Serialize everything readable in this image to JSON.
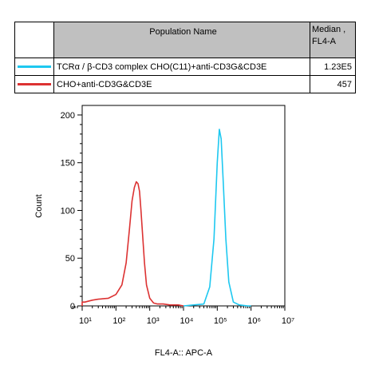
{
  "legend": {
    "header_population": "Population Name",
    "header_median": "Median ,",
    "header_median_param": "FL4-A",
    "rows": [
      {
        "name": "TCRα / β-CD3 complex CHO(C11)+anti-CD3G&CD3E",
        "median": "1.23E5",
        "color": "#1ec8f0"
      },
      {
        "name": "CHO+anti-CD3G&CD3E",
        "median": "457",
        "color": "#dc3232"
      }
    ]
  },
  "chart_data": {
    "type": "line",
    "xlabel": "FL4-A:: APC-A",
    "ylabel": "Count",
    "x_scale": "log",
    "xlim": [
      10000,
      10000000
    ],
    "ylim": [
      0,
      210
    ],
    "x_tick_labels": [
      "10¹",
      "10²",
      "10³",
      "10⁴",
      "10⁵",
      "10⁶",
      "10⁷"
    ],
    "y_ticks": [
      0,
      50,
      100,
      150,
      200
    ],
    "series": [
      {
        "name": "CHO+anti-CD3G&CD3E",
        "color": "#dc3232",
        "x": [
          1,
          3,
          5,
          8,
          12,
          20,
          30,
          60,
          100,
          150,
          200,
          250,
          300,
          350,
          400,
          450,
          500,
          550,
          600,
          700,
          800,
          1000,
          1300,
          1700,
          2500,
          4000,
          7000,
          10000
        ],
        "y": [
          0,
          1,
          3,
          4,
          4,
          6,
          7,
          8,
          12,
          22,
          45,
          80,
          110,
          124,
          130,
          128,
          120,
          100,
          80,
          45,
          22,
          8,
          3,
          2,
          2,
          1,
          1,
          0
        ]
      },
      {
        "name": "TCRα / β-CD3 complex CHO(C11)+anti-CD3G&CD3E",
        "color": "#1ec8f0",
        "x": [
          10000,
          20000,
          40000,
          60000,
          80000,
          100000,
          115000,
          130000,
          150000,
          180000,
          220000,
          300000,
          450000,
          800000,
          1000000
        ],
        "y": [
          0,
          1,
          2,
          20,
          70,
          150,
          185,
          175,
          130,
          70,
          25,
          4,
          1,
          0,
          0
        ]
      }
    ]
  }
}
